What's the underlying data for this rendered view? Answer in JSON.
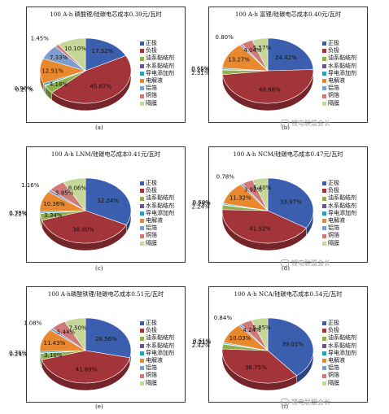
{
  "colors": {
    "正极": "#3b5fae",
    "负极": "#a3343a",
    "油系黏结剂": "#8fb14d",
    "水系黏结剂": "#6f4e9a",
    "导电添加剂": "#2f9fb6",
    "电解液": "#e9892f",
    "铝箔": "#7d9ccf",
    "铜箔": "#cf7a78",
    "隔膜": "#c5d89a"
  },
  "legend_labels": [
    "正极",
    "负极",
    "油系黏结剂",
    "水系黏结剂",
    "导电添加剂",
    "电解液",
    "铝箔",
    "铜箔",
    "隔膜"
  ],
  "watermark": "锂电联盟会长",
  "chart_data": [
    {
      "type": "pie",
      "title": "100 A·h 磷酸锂/硅碳电芯成本0.39元/瓦时",
      "caption": "(a)",
      "categories": [
        "正极",
        "负极",
        "油系黏结剂",
        "水系黏结剂",
        "导电添加剂",
        "电解液",
        "铝箔",
        "铜箔",
        "隔膜"
      ],
      "values": [
        17.32,
        45.87,
        4.18,
        0.27,
        0.96,
        12.51,
        7.33,
        1.45,
        10.1
      ],
      "labels": [
        "17.32%",
        "45.87%",
        "4.18%",
        "0.27%",
        "0.96%",
        "12.51%",
        "7.33%",
        "1.45%",
        "10.10%"
      ]
    },
    {
      "type": "pie",
      "title": "100 A·h 富锂/硅碳电芯成本0.40元/瓦时",
      "caption": "(b)",
      "categories": [
        "正极",
        "负极",
        "油系黏结剂",
        "水系黏结剂",
        "导电添加剂",
        "电解液",
        "铝箔",
        "铜箔",
        "隔膜"
      ],
      "values": [
        24.42,
        48.66,
        2.31,
        0.28,
        0.65,
        13.27,
        0.8,
        4.04,
        5.57
      ],
      "labels": [
        "24.42%",
        "48.66%",
        "2.31%",
        "0.28%",
        "0.65%",
        "13.27%",
        "0.80%",
        "4.04%",
        "5.57%"
      ]
    },
    {
      "type": "pie",
      "title": "100 A·h LNM/硅碳电芯成本0.41元/瓦时",
      "caption": "(c)",
      "categories": [
        "正极",
        "负极",
        "油系黏结剂",
        "水系黏结剂",
        "导电添加剂",
        "电解液",
        "铝箔",
        "铜箔",
        "隔膜"
      ],
      "values": [
        32.24,
        38.0,
        3.34,
        0.22,
        0.78,
        10.36,
        1.16,
        5.85,
        8.06
      ],
      "labels": [
        "32.24%",
        "38.00%",
        "3.34%",
        "0.22%",
        "0.78%",
        "10.36%",
        "1.16%",
        "5.85%",
        "8.06%"
      ]
    },
    {
      "type": "pie",
      "title": "100 A·h NCM/硅碳电芯成本0.47元/瓦时",
      "caption": "(d)",
      "categories": [
        "正极",
        "负极",
        "油系黏结剂",
        "水系黏结剂",
        "导电添加剂",
        "电解液",
        "铝箔",
        "铜箔",
        "隔膜"
      ],
      "values": [
        33.97,
        41.52,
        2.24,
        0.24,
        0.6,
        11.32,
        0.78,
        3.92,
        5.4
      ],
      "labels": [
        "33.97%",
        "41.52%",
        "2.24%",
        "0.24%",
        "0.60%",
        "11.32%",
        "0.78%",
        "3.92%",
        "5.40%"
      ]
    },
    {
      "type": "pie",
      "title": "100 A·h磷酸铁锂/硅碳电芯成本0.51元/瓦时",
      "caption": "(e)",
      "categories": [
        "正极",
        "负极",
        "油系黏结剂",
        "水系黏结剂",
        "导电添加剂",
        "电解液",
        "铝箔",
        "铜箔",
        "隔膜"
      ],
      "values": [
        28.56,
        41.89,
        3.1,
        0.24,
        0.76,
        11.43,
        1.08,
        5.44,
        7.5
      ],
      "labels": [
        "28.56%",
        "41.89%",
        "3.10%",
        "0.24%",
        "0.76%",
        "11.43%",
        "1.08%",
        "5.44%",
        "7.50%"
      ]
    },
    {
      "type": "pie",
      "title": "100 A·h NCA/硅碳电芯成本0.54元/瓦时",
      "caption": "(f)",
      "categories": [
        "正极",
        "负极",
        "油系黏结剂",
        "水系黏结剂",
        "导电添加剂",
        "电解液",
        "铝箔",
        "铜箔",
        "隔膜"
      ],
      "values": [
        39.01,
        36.75,
        2.42,
        0.21,
        0.61,
        10.03,
        0.84,
        4.24,
        5.85
      ],
      "labels": [
        "39.01%",
        "36.75%",
        "2.42%",
        "0.21%",
        "0.61%",
        "10.03%",
        "0.84%",
        "4.24%",
        "5.85%"
      ]
    }
  ]
}
